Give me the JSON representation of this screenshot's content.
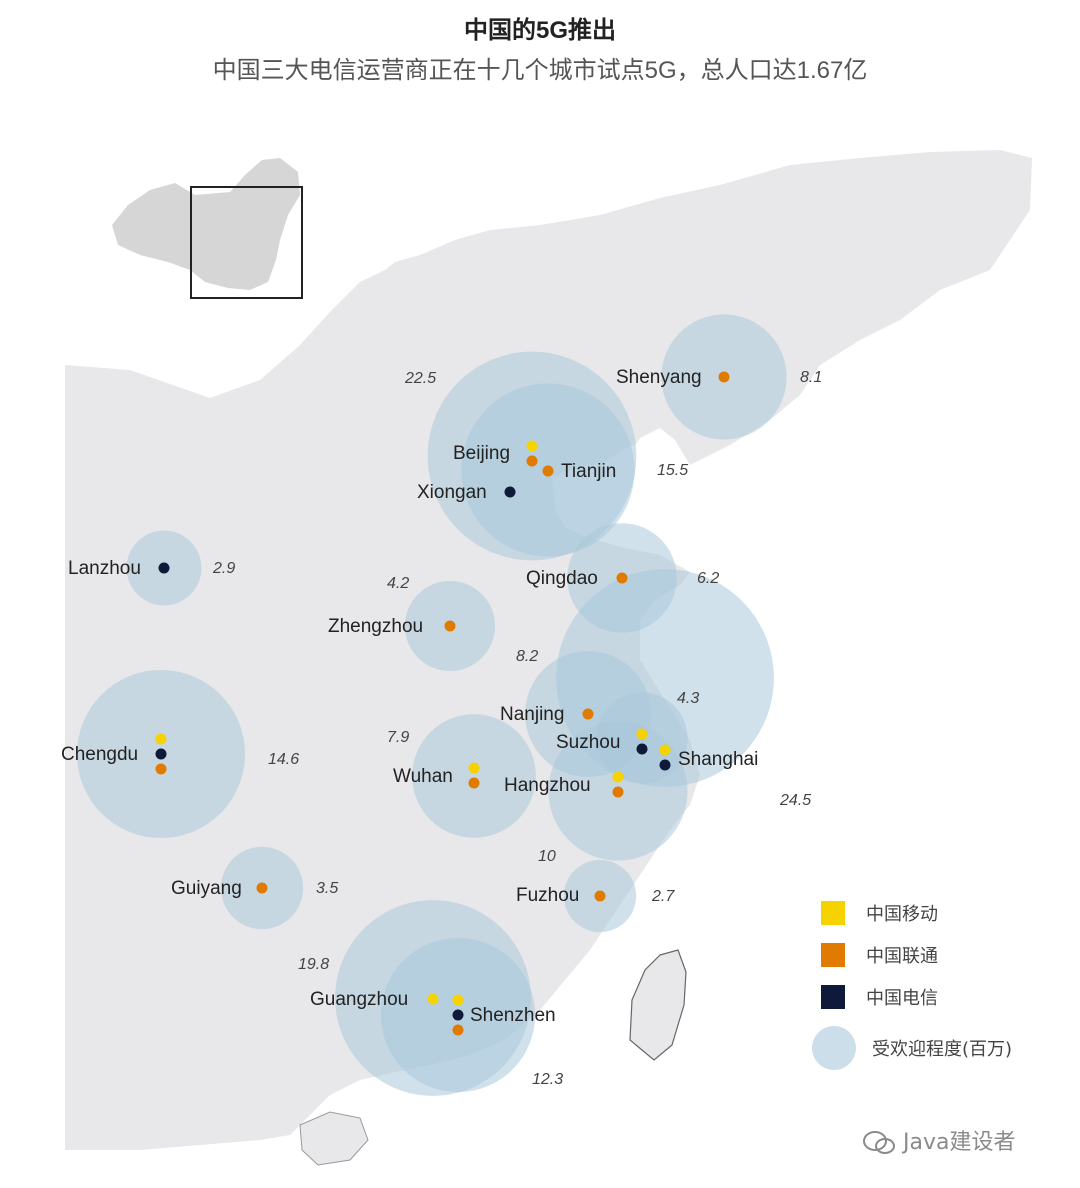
{
  "title": "中国的5G推出",
  "subtitle": "中国三大电信运营商正在十几个城市试点5G，总人口达1.67亿",
  "colors": {
    "china_mobile": "#f5d200",
    "china_unicom": "#e07b00",
    "china_telecom": "#0f1a3a",
    "bubble": "#a9c8da",
    "land": "#e8e8ea"
  },
  "legend": {
    "china_mobile": "中国移动",
    "china_unicom": "中国联通",
    "china_telecom": "中国电信",
    "bubble": "受欢迎程度(百万)"
  },
  "cities": [
    {
      "name": "Shenyang",
      "operators": [
        "china_unicom"
      ]
    },
    {
      "name": "Beijing",
      "operators": [
        "china_mobile",
        "china_unicom"
      ]
    },
    {
      "name": "Tianjin",
      "operators": [
        "china_unicom"
      ]
    },
    {
      "name": "Xiongan",
      "operators": [
        "china_telecom"
      ]
    },
    {
      "name": "Lanzhou",
      "operators": [
        "china_telecom"
      ]
    },
    {
      "name": "Qingdao",
      "operators": [
        "china_unicom"
      ]
    },
    {
      "name": "Zhengzhou",
      "operators": [
        "china_unicom"
      ]
    },
    {
      "name": "Chengdu",
      "operators": [
        "china_mobile",
        "china_telecom",
        "china_unicom"
      ]
    },
    {
      "name": "Nanjing",
      "operators": [
        "china_unicom"
      ]
    },
    {
      "name": "Suzhou",
      "operators": [
        "china_mobile",
        "china_telecom"
      ]
    },
    {
      "name": "Shanghai",
      "operators": [
        "china_mobile",
        "china_telecom"
      ]
    },
    {
      "name": "Wuhan",
      "operators": [
        "china_mobile",
        "china_unicom"
      ]
    },
    {
      "name": "Hangzhou",
      "operators": [
        "china_mobile",
        "china_unicom"
      ]
    },
    {
      "name": "Guiyang",
      "operators": [
        "china_unicom"
      ]
    },
    {
      "name": "Fuzhou",
      "operators": [
        "china_unicom"
      ]
    },
    {
      "name": "Guangzhou",
      "operators": [
        "china_mobile"
      ]
    },
    {
      "name": "Shenzhen",
      "operators": [
        "china_mobile",
        "china_telecom",
        "china_unicom"
      ]
    }
  ],
  "bubbles": [
    {
      "value": 8.1,
      "label": "8.1"
    },
    {
      "value": 22.5,
      "label": "22.5"
    },
    {
      "value": 15.5,
      "label": "15.5"
    },
    {
      "value": 2.9,
      "label": "2.9"
    },
    {
      "value": 6.2,
      "label": "6.2"
    },
    {
      "value": 4.2,
      "label": "4.2"
    },
    {
      "value": 14.6,
      "label": "14.6"
    },
    {
      "value": 8.2,
      "label": "8.2"
    },
    {
      "value": 4.3,
      "label": "4.3"
    },
    {
      "value": 24.5,
      "label": "24.5"
    },
    {
      "value": 7.9,
      "label": "7.9"
    },
    {
      "value": 10,
      "label": "10"
    },
    {
      "value": 3.5,
      "label": "3.5"
    },
    {
      "value": 2.7,
      "label": "2.7"
    },
    {
      "value": 19.8,
      "label": "19.8"
    },
    {
      "value": 12.3,
      "label": "12.3"
    }
  ],
  "watermark": "Java建设者"
}
